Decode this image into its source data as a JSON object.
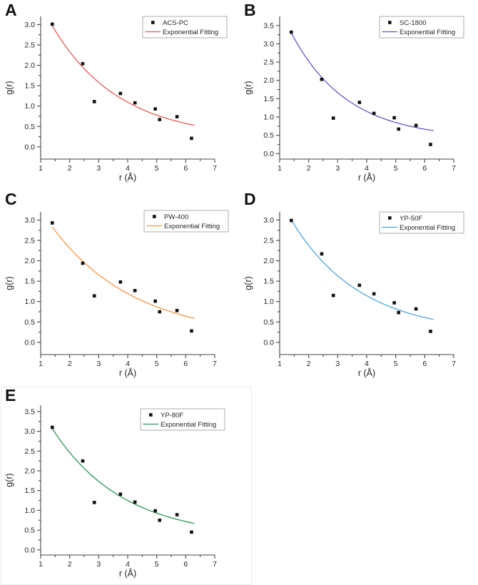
{
  "figure": {
    "xlabel": "r (Å)",
    "ylabel": "g(r)",
    "fit_legend_label": "Exponential Fitting"
  },
  "chart_data": [
    {
      "type": "scatter",
      "panel_label": "A",
      "xlabel": "r (Å)",
      "ylabel": "g(r)",
      "xlim": [
        1,
        7
      ],
      "ylim": [
        -0.3,
        3.2
      ],
      "x_ticks": [
        1,
        2,
        3,
        4,
        5,
        6,
        7
      ],
      "y_ticks": [
        0,
        0.5,
        1,
        1.5,
        2,
        2.5,
        3
      ],
      "x_minor_step": 0.5,
      "y_minor_step": 0.25,
      "grid": false,
      "legend_position": "top-right",
      "series": [
        {
          "name": "ACS-PC",
          "kind": "scatter",
          "marker": "square",
          "color": "#111111",
          "x": [
            1.4,
            2.45,
            2.85,
            3.75,
            4.25,
            4.95,
            5.1,
            5.7,
            6.2
          ],
          "y": [
            3.01,
            2.04,
            1.11,
            1.31,
            1.08,
            0.93,
            0.67,
            0.74,
            0.21
          ]
        },
        {
          "name": "Exponential Fitting",
          "kind": "line",
          "color": "#e65a54",
          "fit": {
            "y0": 0.2,
            "amp": 2.77,
            "tau": 2.3,
            "x0": 1.4,
            "x_start": 1.4,
            "x_end": 6.3
          }
        }
      ]
    },
    {
      "type": "scatter",
      "panel_label": "B",
      "xlabel": "r (Å)",
      "ylabel": "g(r)",
      "xlim": [
        1,
        7
      ],
      "ylim": [
        -0.15,
        3.75
      ],
      "x_ticks": [
        1,
        2,
        3,
        4,
        5,
        6,
        7
      ],
      "y_ticks": [
        0,
        0.5,
        1,
        1.5,
        2,
        2.5,
        3,
        3.5
      ],
      "x_minor_step": 0.5,
      "y_minor_step": 0.25,
      "grid": false,
      "legend_position": "top-right",
      "series": [
        {
          "name": "SC-1800",
          "kind": "scatter",
          "marker": "square",
          "color": "#111111",
          "x": [
            1.4,
            2.45,
            2.85,
            3.75,
            4.25,
            4.95,
            5.1,
            5.7,
            6.2
          ],
          "y": [
            3.32,
            2.03,
            0.97,
            1.4,
            1.1,
            0.98,
            0.67,
            0.77,
            0.25
          ]
        },
        {
          "name": "Exponential Fitting",
          "kind": "line",
          "color": "#6059c4",
          "fit": {
            "y0": 0.4,
            "amp": 2.9,
            "tau": 1.93,
            "x0": 1.4,
            "x_start": 1.4,
            "x_end": 6.3
          }
        }
      ]
    },
    {
      "type": "scatter",
      "panel_label": "C",
      "xlabel": "r (Å)",
      "ylabel": "g(r)",
      "xlim": [
        1,
        7
      ],
      "ylim": [
        -0.3,
        3.2
      ],
      "x_ticks": [
        1,
        2,
        3,
        4,
        5,
        6,
        7
      ],
      "y_ticks": [
        0,
        0.5,
        1,
        1.5,
        2,
        2.5,
        3
      ],
      "x_minor_step": 0.5,
      "y_minor_step": 0.25,
      "grid": false,
      "legend_position": "top-right",
      "series": [
        {
          "name": "PW-400",
          "kind": "scatter",
          "marker": "square",
          "color": "#111111",
          "x": [
            1.4,
            2.45,
            2.85,
            3.75,
            4.25,
            4.95,
            5.1,
            5.7,
            6.2
          ],
          "y": [
            2.93,
            1.94,
            1.14,
            1.48,
            1.27,
            1.01,
            0.75,
            0.78,
            0.28
          ]
        },
        {
          "name": "Exponential Fitting",
          "kind": "line",
          "color": "#f79440",
          "fit": {
            "y0": 0.1,
            "amp": 2.73,
            "tau": 2.85,
            "x0": 1.4,
            "x_start": 1.4,
            "x_end": 6.3
          }
        }
      ]
    },
    {
      "type": "scatter",
      "panel_label": "D",
      "xlabel": "r (Å)",
      "ylabel": "g(r)",
      "xlim": [
        1,
        7
      ],
      "ylim": [
        -0.3,
        3.2
      ],
      "x_ticks": [
        1,
        2,
        3,
        4,
        5,
        6,
        7
      ],
      "y_ticks": [
        0,
        0.5,
        1,
        1.5,
        2,
        2.5,
        3
      ],
      "x_minor_step": 0.5,
      "y_minor_step": 0.25,
      "grid": false,
      "legend_position": "top-right",
      "series": [
        {
          "name": "YP-50F",
          "kind": "scatter",
          "marker": "square",
          "color": "#111111",
          "x": [
            1.4,
            2.45,
            2.85,
            3.75,
            4.25,
            4.95,
            5.1,
            5.7,
            6.2
          ],
          "y": [
            2.99,
            2.17,
            1.15,
            1.4,
            1.19,
            0.97,
            0.73,
            0.82,
            0.27
          ]
        },
        {
          "name": "Exponential Fitting",
          "kind": "line",
          "color": "#4aa3e0",
          "fit": {
            "y0": 0.2,
            "amp": 2.8,
            "tau": 2.39,
            "x0": 1.4,
            "x_start": 1.4,
            "x_end": 6.3
          }
        }
      ]
    },
    {
      "type": "scatter",
      "panel_label": "E",
      "xlabel": "r (Å)",
      "ylabel": "g(r)",
      "xlim": [
        1,
        7
      ],
      "ylim": [
        -0.13,
        3.66
      ],
      "x_ticks": [
        1,
        2,
        3,
        4,
        5,
        6,
        7
      ],
      "y_ticks": [
        0,
        0.5,
        1,
        1.5,
        2,
        2.5,
        3,
        3.5
      ],
      "x_minor_step": 0.5,
      "y_minor_step": 0.25,
      "grid": false,
      "legend_position": "top-right",
      "series": [
        {
          "name": "YP-80F",
          "kind": "scatter",
          "marker": "square",
          "color": "#111111",
          "x": [
            1.4,
            2.45,
            2.85,
            3.75,
            4.25,
            4.95,
            5.1,
            5.7,
            6.2
          ],
          "y": [
            3.1,
            2.25,
            1.2,
            1.41,
            1.21,
            0.99,
            0.75,
            0.89,
            0.45
          ]
        },
        {
          "name": "Exponential Fitting",
          "kind": "line",
          "color": "#2a9455",
          "fit": {
            "y0": 0.3,
            "amp": 2.77,
            "tau": 2.43,
            "x0": 1.4,
            "x_start": 1.4,
            "x_end": 6.3
          }
        }
      ]
    }
  ]
}
